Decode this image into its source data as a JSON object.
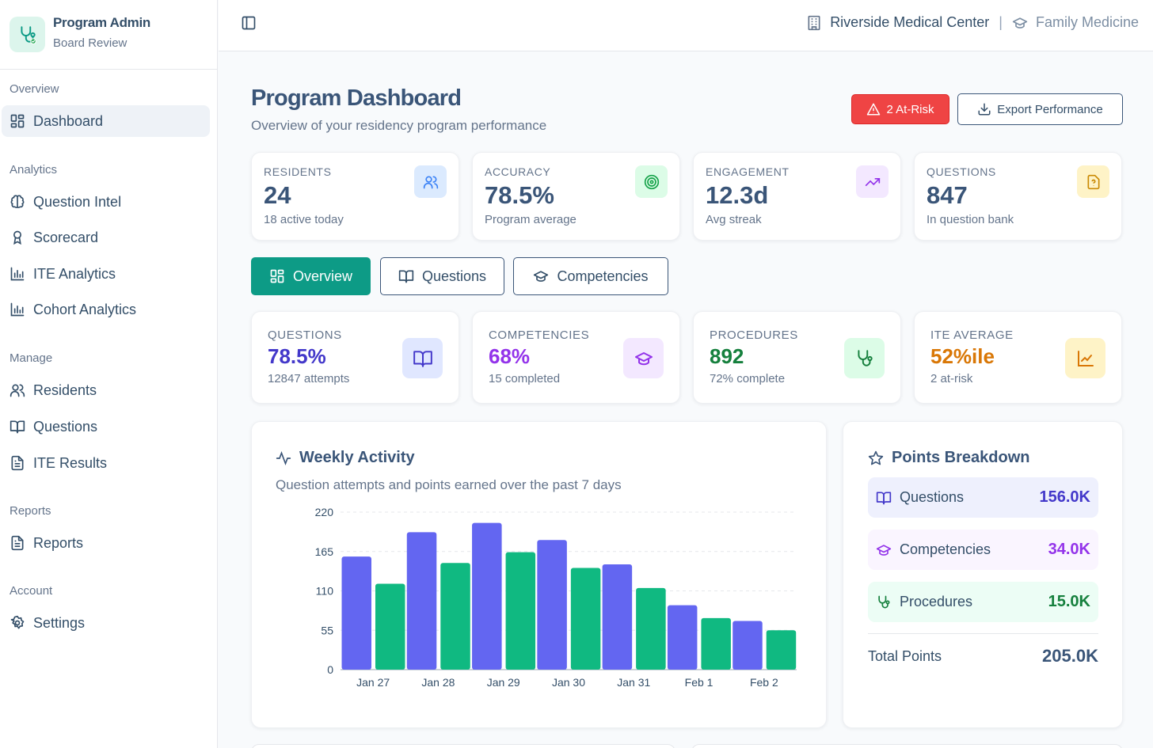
{
  "brand": {
    "title": "Program Admin",
    "subtitle": "Board Review",
    "logo_icon": "stethoscope-icon"
  },
  "sidebar": {
    "sections": {
      "overview": "Overview",
      "analytics": "Analytics",
      "manage": "Manage",
      "reports": "Reports",
      "account": "Account"
    },
    "items": {
      "dashboard": "Dashboard",
      "question_intel": "Question Intel",
      "scorecard": "Scorecard",
      "ite_analytics": "ITE Analytics",
      "cohort_analytics": "Cohort Analytics",
      "residents": "Residents",
      "questions": "Questions",
      "ite_results": "ITE Results",
      "reports": "Reports",
      "settings": "Settings"
    }
  },
  "header": {
    "hospital": "Riverside Medical Center",
    "specialty": "Family Medicine"
  },
  "page": {
    "title": "Program Dashboard",
    "subtitle": "Overview of your residency program performance"
  },
  "actions": {
    "at_risk": "2 At-Risk",
    "export": "Export Performance"
  },
  "stats": [
    {
      "label": "RESIDENTS",
      "value": "24",
      "sub": "18 active today",
      "icon": "users-icon",
      "color": "#3b82f6"
    },
    {
      "label": "ACCURACY",
      "value": "78.5%",
      "sub": "Program average",
      "icon": "target-icon",
      "color": "#16a34a"
    },
    {
      "label": "ENGAGEMENT",
      "value": "12.3d",
      "sub": "Avg streak",
      "icon": "trending-up-icon",
      "color": "#9333ea"
    },
    {
      "label": "QUESTIONS",
      "value": "847",
      "sub": "In question bank",
      "icon": "file-question-icon",
      "color": "#ca8a04"
    }
  ],
  "tabs": {
    "overview": "Overview",
    "questions": "Questions",
    "competencies": "Competencies"
  },
  "metrics": [
    {
      "label": "QUESTIONS",
      "value": "78.5%",
      "sub": "12847 attempts",
      "color": "#4338ca",
      "icon": "book-open-icon"
    },
    {
      "label": "COMPETENCIES",
      "value": "68%",
      "sub": "15 completed",
      "color": "#9333ea",
      "icon": "graduation-cap-icon"
    },
    {
      "label": "PROCEDURES",
      "value": "892",
      "sub": "72% complete",
      "color": "#15803d",
      "icon": "stethoscope-icon"
    },
    {
      "label": "ITE AVERAGE",
      "value": "52%ile",
      "sub": "2 at-risk",
      "color": "#d97706",
      "icon": "line-chart-icon"
    }
  ],
  "weekly": {
    "title": "Weekly Activity",
    "subtitle": "Question attempts and points earned over the past 7 days"
  },
  "chart_data": {
    "type": "bar",
    "title": "Weekly Activity",
    "subtitle": "Question attempts and points earned over the past 7 days",
    "categories": [
      "Jan 27",
      "Jan 28",
      "Jan 29",
      "Jan 30",
      "Jan 31",
      "Feb 1",
      "Feb 2"
    ],
    "series": [
      {
        "name": "Question attempts",
        "color": "#6366f1",
        "values": [
          158,
          192,
          205,
          181,
          147,
          90,
          68
        ]
      },
      {
        "name": "Points earned",
        "color": "#10b981",
        "values": [
          120,
          149,
          164,
          142,
          114,
          72,
          55
        ]
      }
    ],
    "yticks": [
      0,
      55,
      110,
      165,
      220
    ],
    "ylim": [
      0,
      220
    ],
    "grid": true
  },
  "points": {
    "title": "Points Breakdown",
    "rows": [
      {
        "label": "Questions",
        "value": "156.0K"
      },
      {
        "label": "Competencies",
        "value": "34.0K"
      },
      {
        "label": "Procedures",
        "value": "15.0K"
      }
    ],
    "total_label": "Total Points",
    "total_value": "205.0K"
  }
}
